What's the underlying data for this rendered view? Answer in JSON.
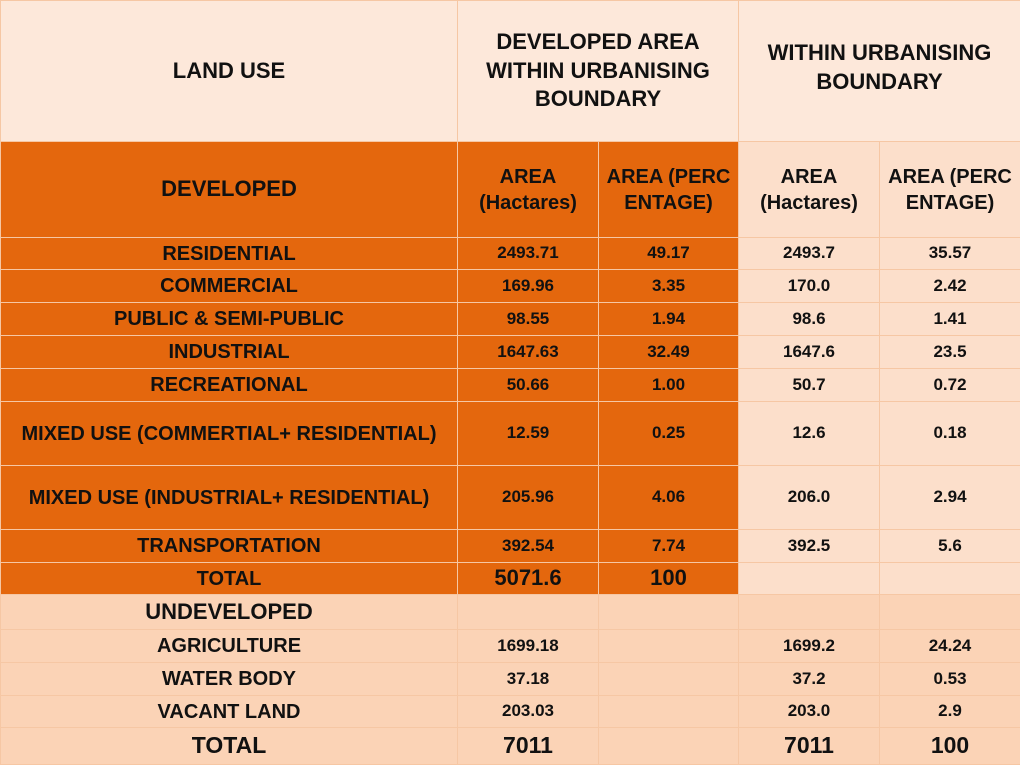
{
  "header": {
    "land_use": "LAND USE",
    "developed_area_title": "DEVELOPED AREA WITHIN URBANISING BOUNDARY",
    "within_title": "WITHIN URBANISING BOUNDARY"
  },
  "subheader": {
    "developed": "DEVELOPED",
    "area_hactares": "AREA (Hactares)",
    "area_percentage": "AREA (PERCENTAGE)"
  },
  "developed_rows": [
    {
      "land_use": "RESIDENTIAL",
      "dev_area": "2493.71",
      "dev_pct": "49.17",
      "urb_area": "2493.7",
      "urb_pct": "35.57"
    },
    {
      "land_use": "COMMERCIAL",
      "dev_area": "169.96",
      "dev_pct": "3.35",
      "urb_area": "170.0",
      "urb_pct": "2.42"
    },
    {
      "land_use": "PUBLIC & SEMI-PUBLIC",
      "dev_area": "98.55",
      "dev_pct": "1.94",
      "urb_area": "98.6",
      "urb_pct": "1.41"
    },
    {
      "land_use": "INDUSTRIAL",
      "dev_area": "1647.63",
      "dev_pct": "32.49",
      "urb_area": "1647.6",
      "urb_pct": "23.5"
    },
    {
      "land_use": "RECREATIONAL",
      "dev_area": "50.66",
      "dev_pct": "1.00",
      "urb_area": "50.7",
      "urb_pct": "0.72"
    },
    {
      "land_use": "MIXED USE (COMMERTIAL+ RESIDENTIAL)",
      "dev_area": "12.59",
      "dev_pct": "0.25",
      "urb_area": "12.6",
      "urb_pct": "0.18"
    },
    {
      "land_use": "MIXED USE (INDUSTRIAL+ RESIDENTIAL)",
      "dev_area": "205.96",
      "dev_pct": "4.06",
      "urb_area": "206.0",
      "urb_pct": "2.94"
    },
    {
      "land_use": "TRANSPORTATION",
      "dev_area": "392.54",
      "dev_pct": "7.74",
      "urb_area": "392.5",
      "urb_pct": "5.6"
    }
  ],
  "developed_total": {
    "land_use": "TOTAL",
    "dev_area": "5071.6",
    "dev_pct": "100"
  },
  "undeveloped_label": "UNDEVELOPED",
  "undeveloped_rows": [
    {
      "land_use": "AGRICULTURE",
      "dev_area": "1699.18",
      "urb_area": "1699.2",
      "urb_pct": "24.24"
    },
    {
      "land_use": "WATER BODY",
      "dev_area": "37.18",
      "urb_area": "37.2",
      "urb_pct": "0.53"
    },
    {
      "land_use": "VACANT LAND",
      "dev_area": "203.03",
      "urb_area": "203.0",
      "urb_pct": "2.9"
    }
  ],
  "grand_total": {
    "land_use": "TOTAL",
    "dev_area": "7011",
    "urb_area": "7011",
    "urb_pct": "100"
  },
  "colors": {
    "dark_orange": "#e4670d",
    "light_peach": "#fbd3b6",
    "header_bg": "#fde8da"
  }
}
